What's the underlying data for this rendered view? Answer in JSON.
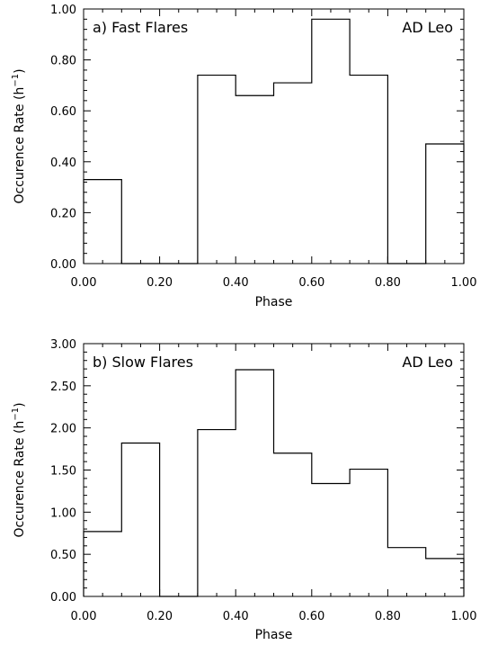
{
  "chart_data": [
    {
      "type": "histogram",
      "title": "a) Fast Flares",
      "annotation": "AD Leo",
      "xlabel": "Phase",
      "ylabel_prefix": "Occurence Rate (h",
      "ylabel_exp": "−1",
      "ylabel_suffix": ")",
      "xlim": [
        0,
        1
      ],
      "ylim": [
        0,
        1
      ],
      "xticks": [
        "0.00",
        "0.20",
        "0.40",
        "0.60",
        "0.80",
        "1.00"
      ],
      "xtick_values": [
        0,
        0.2,
        0.4,
        0.6,
        0.8,
        1.0
      ],
      "yticks": [
        "0.00",
        "0.20",
        "0.40",
        "0.60",
        "0.80",
        "1.00"
      ],
      "ytick_values": [
        0,
        0.2,
        0.4,
        0.6,
        0.8,
        1.0
      ],
      "bin_edges": [
        0,
        0.1,
        0.2,
        0.3,
        0.4,
        0.5,
        0.6,
        0.7,
        0.8,
        0.9,
        1.0
      ],
      "values": [
        0.33,
        0.0,
        0.0,
        0.74,
        0.66,
        0.71,
        0.96,
        0.74,
        0.0,
        0.47
      ],
      "grid": false
    },
    {
      "type": "histogram",
      "title": "b) Slow Flares",
      "annotation": "AD Leo",
      "xlabel": "Phase",
      "ylabel_prefix": "Occurence Rate (h",
      "ylabel_exp": "−1",
      "ylabel_suffix": ")",
      "xlim": [
        0,
        1
      ],
      "ylim": [
        0,
        3
      ],
      "xticks": [
        "0.00",
        "0.20",
        "0.40",
        "0.60",
        "0.80",
        "1.00"
      ],
      "xtick_values": [
        0,
        0.2,
        0.4,
        0.6,
        0.8,
        1.0
      ],
      "yticks": [
        "0.00",
        "0.50",
        "1.00",
        "1.50",
        "2.00",
        "2.50",
        "3.00"
      ],
      "ytick_values": [
        0,
        0.5,
        1.0,
        1.5,
        2.0,
        2.5,
        3.0
      ],
      "bin_edges": [
        0,
        0.1,
        0.2,
        0.3,
        0.4,
        0.5,
        0.6,
        0.7,
        0.8,
        0.9,
        1.0
      ],
      "values": [
        0.77,
        1.82,
        0.0,
        1.98,
        2.69,
        1.7,
        1.34,
        1.51,
        0.58,
        0.45
      ],
      "grid": false
    }
  ]
}
